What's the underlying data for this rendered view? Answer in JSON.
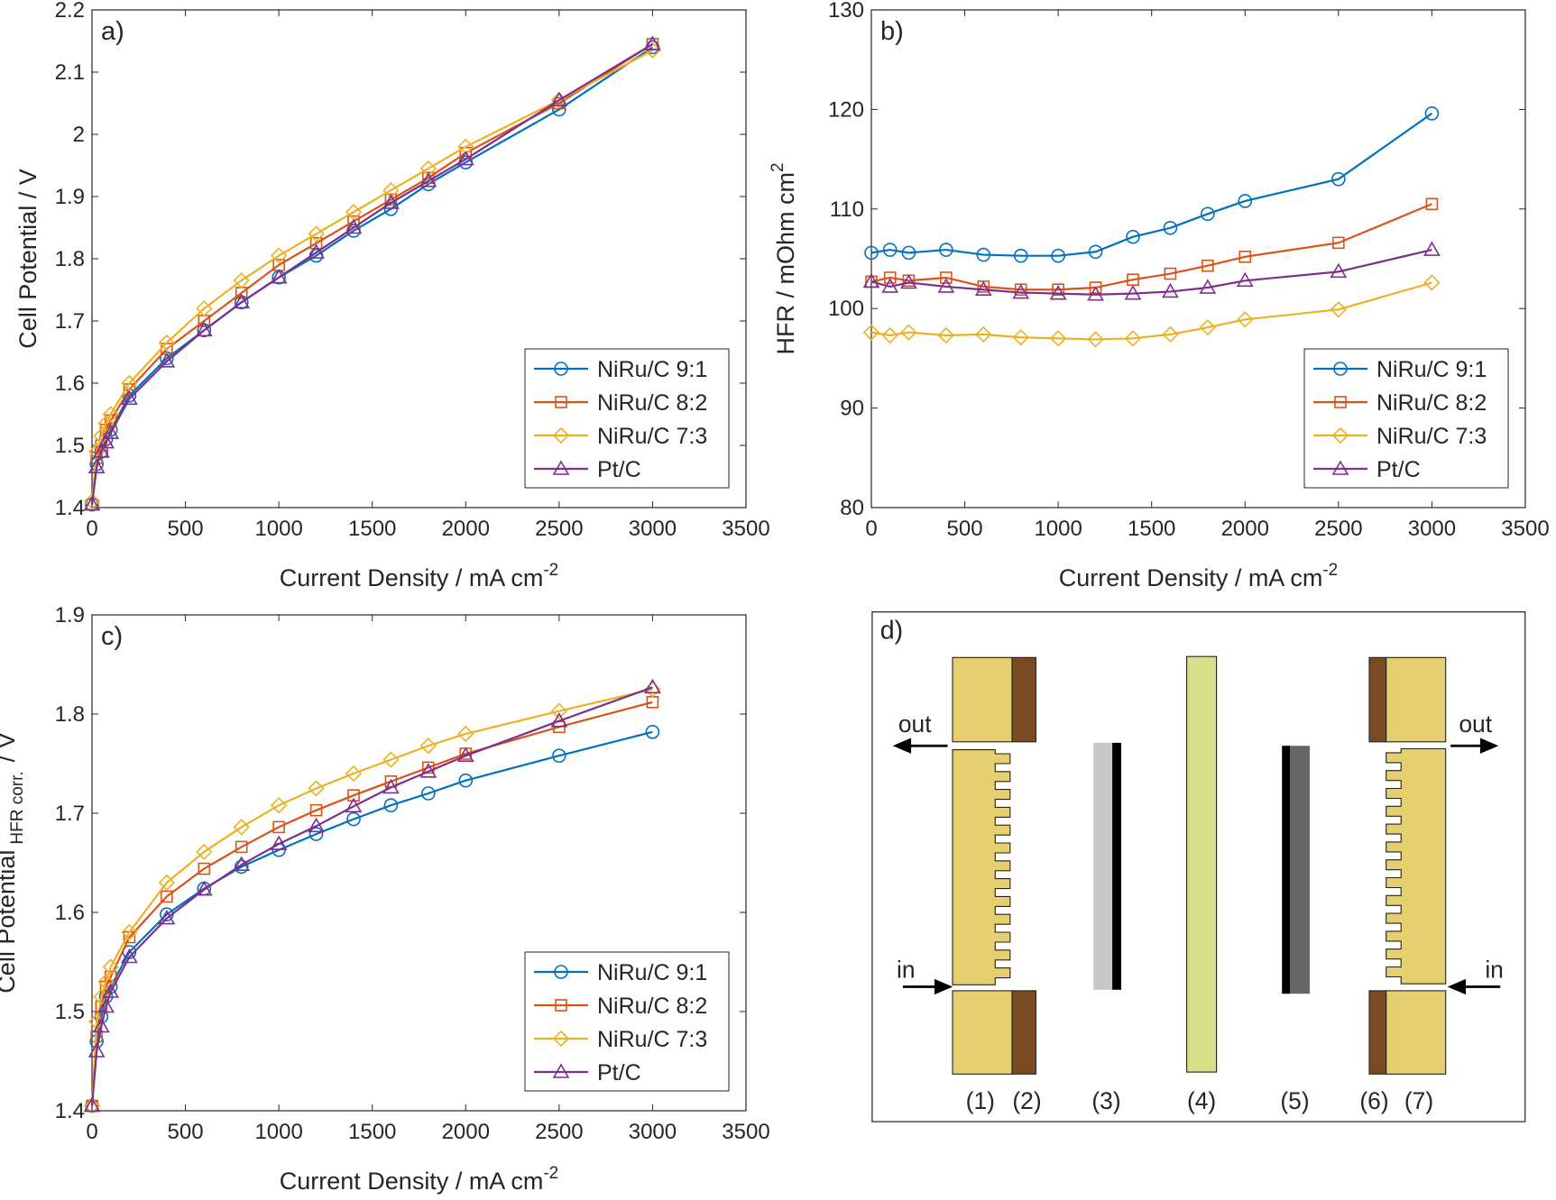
{
  "chart_data": [
    {
      "type": "line",
      "panel_label": "a)",
      "xlabel": "Current Density / mA cm",
      "xlabel_superscript": "-2",
      "ylabel": "Cell Potential / V",
      "x": [
        0,
        25,
        50,
        75,
        100,
        200,
        400,
        600,
        800,
        1000,
        1200,
        1400,
        1600,
        1800,
        2000,
        2500,
        3000
      ],
      "series": [
        {
          "name": "NiRu/C 9:1",
          "color": "#0072BD",
          "marker": "circle",
          "values": [
            1.405,
            1.47,
            1.49,
            1.51,
            1.525,
            1.58,
            1.64,
            1.685,
            1.73,
            1.77,
            1.805,
            1.845,
            1.88,
            1.92,
            1.955,
            2.04,
            2.14
          ]
        },
        {
          "name": "NiRu/C 8:2",
          "color": "#D95319",
          "marker": "square",
          "values": [
            1.405,
            1.48,
            1.5,
            1.525,
            1.54,
            1.59,
            1.655,
            1.7,
            1.745,
            1.79,
            1.825,
            1.86,
            1.895,
            1.93,
            1.97,
            2.05,
            2.145
          ]
        },
        {
          "name": "NiRu/C 7:3",
          "color": "#EDB120",
          "marker": "diamond",
          "values": [
            1.41,
            1.49,
            1.515,
            1.535,
            1.55,
            1.6,
            1.665,
            1.72,
            1.765,
            1.805,
            1.84,
            1.875,
            1.91,
            1.945,
            1.98,
            2.055,
            2.135
          ]
        },
        {
          "name": "Pt/C",
          "color": "#7E2F8E",
          "marker": "triangle",
          "values": [
            1.405,
            1.465,
            1.49,
            1.505,
            1.52,
            1.575,
            1.635,
            1.685,
            1.73,
            1.77,
            1.81,
            1.85,
            1.89,
            1.925,
            1.96,
            2.055,
            2.145
          ]
        }
      ],
      "xlim": [
        0,
        3500
      ],
      "xticks": [
        0,
        500,
        1000,
        1500,
        2000,
        2500,
        3000,
        3500
      ],
      "ylim": [
        1.4,
        2.2
      ],
      "yticks": [
        1.4,
        1.5,
        1.6,
        1.7,
        1.8,
        1.9,
        2,
        2.1,
        2.2
      ],
      "legend": "southeast"
    },
    {
      "type": "line",
      "panel_label": "b)",
      "xlabel": "Current Density / mA cm",
      "xlabel_superscript": "-2",
      "ylabel": "HFR / mOhm cm",
      "ylabel_superscript": "2",
      "x": [
        0,
        100,
        200,
        400,
        600,
        800,
        1000,
        1200,
        1400,
        1600,
        1800,
        2000,
        2500,
        3000
      ],
      "series": [
        {
          "name": "NiRu/C 9:1",
          "color": "#0072BD",
          "marker": "circle",
          "values": [
            105.6,
            105.9,
            105.6,
            105.9,
            105.4,
            105.3,
            105.3,
            105.7,
            107.2,
            108.1,
            109.5,
            110.8,
            113.0,
            119.6
          ]
        },
        {
          "name": "NiRu/C 8:2",
          "color": "#D95319",
          "marker": "square",
          "values": [
            102.7,
            103.1,
            102.8,
            103.1,
            102.2,
            101.9,
            101.9,
            102.1,
            102.9,
            103.5,
            104.3,
            105.2,
            106.6,
            110.5
          ]
        },
        {
          "name": "NiRu/C 7:3",
          "color": "#EDB120",
          "marker": "diamond",
          "values": [
            97.6,
            97.3,
            97.6,
            97.3,
            97.4,
            97.1,
            97.0,
            96.9,
            97.0,
            97.4,
            98.1,
            98.9,
            99.9,
            102.6
          ]
        },
        {
          "name": "Pt/C",
          "color": "#7E2F8E",
          "marker": "triangle",
          "values": [
            102.7,
            102.2,
            102.6,
            102.2,
            101.9,
            101.6,
            101.5,
            101.4,
            101.5,
            101.7,
            102.1,
            102.8,
            103.7,
            105.9
          ]
        }
      ],
      "xlim": [
        0,
        3500
      ],
      "xticks": [
        0,
        500,
        1000,
        1500,
        2000,
        2500,
        3000,
        3500
      ],
      "ylim": [
        80,
        130
      ],
      "yticks": [
        80,
        90,
        100,
        110,
        120,
        130
      ],
      "legend": "southeast"
    },
    {
      "type": "line",
      "panel_label": "c)",
      "xlabel": "Current Density / mA cm",
      "xlabel_superscript": "-2",
      "ylabel": "Cell Potential",
      "ylabel_subscript": "HFR corr.",
      "ylabel_suffix": "/ V",
      "x": [
        0,
        25,
        50,
        75,
        100,
        200,
        400,
        600,
        800,
        1000,
        1200,
        1400,
        1600,
        1800,
        2000,
        2500,
        3000
      ],
      "series": [
        {
          "name": "NiRu/C 9:1",
          "color": "#0072BD",
          "marker": "circle",
          "values": [
            1.405,
            1.47,
            1.495,
            1.515,
            1.525,
            1.56,
            1.598,
            1.624,
            1.646,
            1.663,
            1.679,
            1.694,
            1.708,
            1.72,
            1.733,
            1.758,
            1.782
          ]
        },
        {
          "name": "NiRu/C 8:2",
          "color": "#D95319",
          "marker": "square",
          "values": [
            1.405,
            1.475,
            1.505,
            1.525,
            1.535,
            1.575,
            1.616,
            1.644,
            1.666,
            1.686,
            1.703,
            1.718,
            1.732,
            1.746,
            1.76,
            1.787,
            1.812
          ]
        },
        {
          "name": "NiRu/C 7:3",
          "color": "#EDB120",
          "marker": "diamond",
          "values": [
            1.405,
            1.49,
            1.515,
            1.53,
            1.545,
            1.58,
            1.63,
            1.661,
            1.686,
            1.708,
            1.725,
            1.74,
            1.754,
            1.768,
            1.78,
            1.803,
            1.825
          ]
        },
        {
          "name": "Pt/C",
          "color": "#7E2F8E",
          "marker": "triangle",
          "values": [
            1.405,
            1.46,
            1.485,
            1.505,
            1.52,
            1.555,
            1.594,
            1.623,
            1.648,
            1.669,
            1.687,
            1.707,
            1.726,
            1.742,
            1.758,
            1.793,
            1.827
          ]
        }
      ],
      "xlim": [
        0,
        3500
      ],
      "xticks": [
        0,
        500,
        1000,
        1500,
        2000,
        2500,
        3000,
        3500
      ],
      "ylim": [
        1.4,
        1.9
      ],
      "yticks": [
        1.4,
        1.5,
        1.6,
        1.7,
        1.8,
        1.9
      ],
      "legend": "southeast"
    }
  ],
  "diagram": {
    "panel_label": "d)",
    "left_out": "out",
    "left_in": "in",
    "right_out": "out",
    "right_in": "in",
    "components": [
      "(1)",
      "(2)",
      "(3)",
      "(4)",
      "(5)",
      "(6)",
      "(7)"
    ]
  }
}
